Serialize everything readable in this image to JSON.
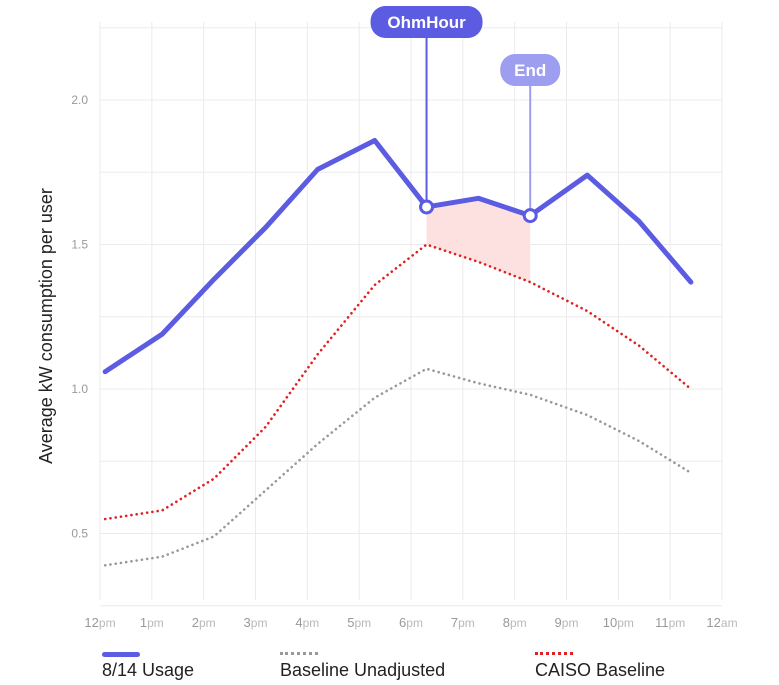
{
  "chart_data": {
    "type": "line",
    "ylabel": "Average kW consumption per user",
    "xlabel": "",
    "x_ticks": [
      {
        "hour": 12,
        "num": "12",
        "suffix": "pm"
      },
      {
        "hour": 13,
        "num": "1",
        "suffix": "pm"
      },
      {
        "hour": 14,
        "num": "2",
        "suffix": "pm"
      },
      {
        "hour": 15,
        "num": "3",
        "suffix": "pm"
      },
      {
        "hour": 16,
        "num": "4",
        "suffix": "pm"
      },
      {
        "hour": 17,
        "num": "5",
        "suffix": "pm"
      },
      {
        "hour": 18,
        "num": "6",
        "suffix": "pm"
      },
      {
        "hour": 19,
        "num": "7",
        "suffix": "pm"
      },
      {
        "hour": 20,
        "num": "8",
        "suffix": "pm"
      },
      {
        "hour": 21,
        "num": "9",
        "suffix": "pm"
      },
      {
        "hour": 22,
        "num": "10",
        "suffix": "pm"
      },
      {
        "hour": 23,
        "num": "11",
        "suffix": "pm"
      },
      {
        "hour": 24,
        "num": "12",
        "suffix": "am"
      }
    ],
    "y_ticks": [
      0.5,
      1.0,
      1.5,
      2.0
    ],
    "y_tick_labels": [
      "0.5",
      "1.0",
      "1.5",
      "2.0"
    ],
    "xlim": [
      12,
      24
    ],
    "ylim": [
      0.27,
      2.27
    ],
    "grid": true,
    "series": [
      {
        "name": "8/14 Usage",
        "style": "solid",
        "color": "#5b5ce2",
        "x": [
          12.1,
          13.2,
          14.2,
          15.2,
          16.2,
          17.3,
          18.3,
          19.3,
          20.3,
          21.4,
          22.4,
          23.4
        ],
        "y": [
          1.06,
          1.19,
          1.38,
          1.56,
          1.76,
          1.86,
          1.63,
          1.66,
          1.6,
          1.74,
          1.58,
          1.37
        ]
      },
      {
        "name": "Baseline Unadjusted",
        "style": "dotted",
        "color": "#999999",
        "x": [
          12.1,
          13.2,
          14.2,
          15.2,
          16.2,
          17.3,
          18.3,
          19.3,
          20.3,
          21.4,
          22.4,
          23.4
        ],
        "y": [
          0.39,
          0.42,
          0.49,
          0.65,
          0.81,
          0.97,
          1.07,
          1.02,
          0.98,
          0.91,
          0.82,
          0.71
        ]
      },
      {
        "name": "CAISO Baseline",
        "style": "dotted",
        "color": "#e02020",
        "x": [
          12.1,
          13.2,
          14.2,
          15.2,
          16.2,
          17.3,
          18.3,
          19.3,
          20.3,
          21.4,
          22.4,
          23.4
        ],
        "y": [
          0.55,
          0.58,
          0.69,
          0.87,
          1.12,
          1.36,
          1.5,
          1.44,
          1.37,
          1.27,
          1.15,
          1.0
        ]
      }
    ],
    "shaded_region": {
      "x_start": 18.3,
      "x_end": 20.3,
      "color": "#fde0e0"
    },
    "annotations": [
      {
        "label": "OhmHour",
        "x": 18.3,
        "y": 1.63,
        "color": "#5b5ce2",
        "text_color": "#ffffff"
      },
      {
        "label": "End",
        "x": 20.3,
        "y": 1.6,
        "color": "#9d9ef0",
        "text_color": "#ffffff"
      }
    ],
    "colors": {
      "grid": "#ebebeb",
      "tick_num": "#999999",
      "tick_suffix": "#b8b8b8",
      "axis_label": "#222222"
    },
    "legend_position": "bottom"
  },
  "legend": {
    "items": [
      {
        "label": "8/14 Usage"
      },
      {
        "label": "Baseline Unadjusted"
      },
      {
        "label": "CAISO Baseline"
      }
    ]
  }
}
